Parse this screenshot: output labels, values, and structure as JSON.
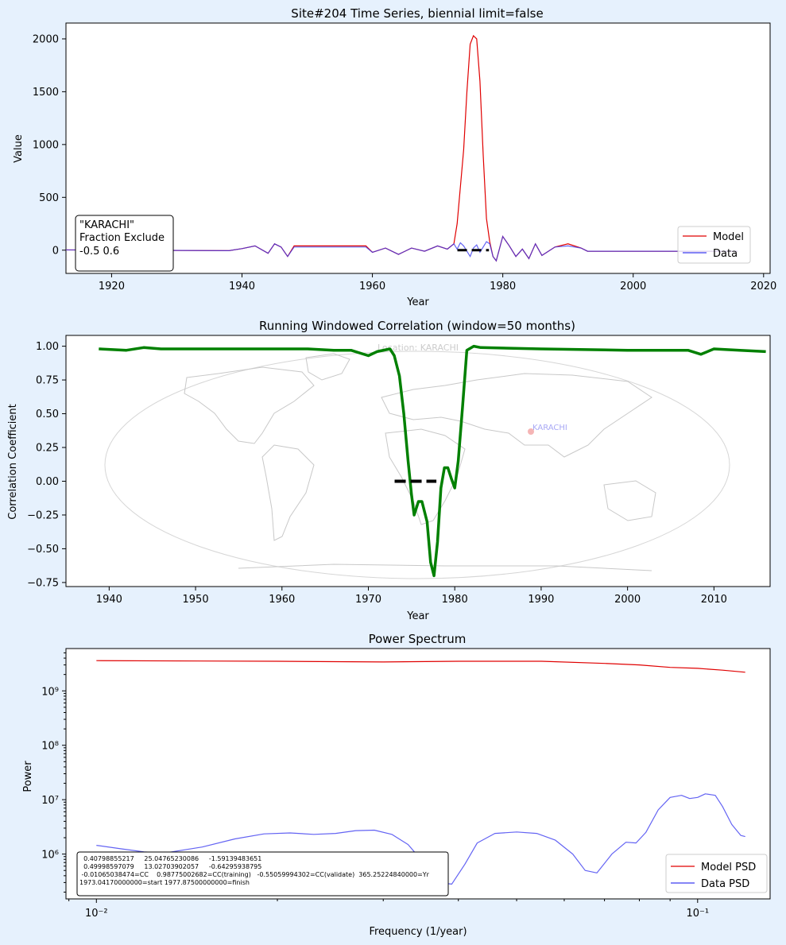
{
  "colors": {
    "background": "#e6f1fd",
    "model": "#e00000",
    "data": "#3c3cf0",
    "overlap": "#7a0fa0",
    "correlation": "#008000",
    "map": "#c8c8c8",
    "marker": "#000000"
  },
  "chart_data": [
    {
      "type": "line",
      "title": "Site#204 Time Series, biennial limit=false",
      "xlabel": "Year",
      "ylabel": "Value",
      "xlim": [
        1913,
        2021
      ],
      "ylim": [
        -220,
        2150
      ],
      "xticks": [
        "1920",
        "1940",
        "1960",
        "1980",
        "2000",
        "2020"
      ],
      "yticks": [
        "0",
        "500",
        "1000",
        "1500",
        "2000"
      ],
      "legend": {
        "placement": "lower-right",
        "entries": [
          "Model",
          "Data"
        ]
      },
      "annotation": [
        "\"KARACHI\"",
        "Fraction Exclude",
        "-0.5 0.6"
      ],
      "interval_marker": {
        "start": 1973.04,
        "finish": 1977.875,
        "y": 0
      },
      "series": [
        {
          "name": "Model",
          "x": [
            1905,
            1938,
            1940,
            1942,
            1944,
            1945,
            1946,
            1947,
            1948,
            1959,
            1960,
            1962,
            1964,
            1966,
            1968,
            1970,
            1971.5,
            1972.5,
            1973,
            1973.5,
            1974,
            1974.5,
            1975,
            1975.5,
            1976,
            1976.5,
            1977,
            1977.5,
            1978,
            1978.5,
            1979,
            1980,
            1981,
            1982,
            1983,
            1984,
            1985,
            1986,
            1988,
            1990,
            1992,
            1993,
            2016
          ],
          "y": [
            5,
            -5,
            15,
            40,
            -30,
            60,
            30,
            -60,
            40,
            40,
            -20,
            20,
            -40,
            20,
            -10,
            40,
            10,
            60,
            250,
            600,
            950,
            1500,
            1950,
            2030,
            2000,
            1600,
            900,
            300,
            80,
            -60,
            -100,
            130,
            40,
            -60,
            10,
            -80,
            60,
            -50,
            30,
            60,
            20,
            -10,
            -10
          ]
        },
        {
          "name": "Data",
          "x": [
            1905,
            1938,
            1940,
            1942,
            1944,
            1945,
            1946,
            1947,
            1948,
            1959,
            1960,
            1962,
            1964,
            1966,
            1968,
            1970,
            1971.5,
            1972.5,
            1973,
            1973.5,
            1974,
            1974.5,
            1975,
            1975.5,
            1976,
            1976.5,
            1977,
            1977.5,
            1978,
            1978.5,
            1979,
            1980,
            1981,
            1982,
            1983,
            1984,
            1985,
            1986,
            1988,
            1990,
            1992,
            1993,
            2016
          ],
          "y": [
            5,
            -5,
            15,
            40,
            -30,
            60,
            30,
            -60,
            30,
            30,
            -20,
            20,
            -40,
            20,
            -10,
            40,
            10,
            60,
            10,
            70,
            40,
            -10,
            -60,
            20,
            50,
            -20,
            30,
            80,
            60,
            -60,
            -100,
            130,
            40,
            -60,
            10,
            -80,
            60,
            -50,
            30,
            40,
            20,
            -10,
            -10
          ]
        }
      ]
    },
    {
      "type": "line",
      "title": "Running Windowed Correlation (window=50 months)",
      "xlabel": "Year",
      "ylabel": "Correlation Coefficient",
      "xlim": [
        1935,
        2016.5
      ],
      "ylim": [
        -0.78,
        1.08
      ],
      "xticks": [
        "1940",
        "1950",
        "1960",
        "1970",
        "1980",
        "1990",
        "2000",
        "2010"
      ],
      "yticks": [
        "1.00",
        "0.75",
        "0.50",
        "0.25",
        "0.00",
        "−0.25",
        "−0.50",
        "−0.75"
      ],
      "map_labels": {
        "location": "Location: KARACHI",
        "site": "KARACHI"
      },
      "interval_marker": {
        "start": 1973.04,
        "finish": 1977.875,
        "y": 0
      },
      "series": [
        {
          "name": "Correlation",
          "x": [
            1938.8,
            1942,
            1944,
            1946,
            1950,
            1960,
            1963,
            1966,
            1968,
            1970,
            1971,
            1972.5,
            1973,
            1973.6,
            1974.1,
            1974.6,
            1975,
            1975.3,
            1975.8,
            1976.2,
            1976.8,
            1977.2,
            1977.6,
            1978,
            1978.4,
            1978.8,
            1979.2,
            1979.6,
            1980,
            1980.4,
            1980.9,
            1981.4,
            1982.2,
            1983,
            1990,
            2000,
            2007,
            2008.5,
            2010,
            2013,
            2016
          ],
          "y": [
            0.98,
            0.97,
            0.99,
            0.98,
            0.98,
            0.98,
            0.98,
            0.97,
            0.97,
            0.93,
            0.96,
            0.98,
            0.93,
            0.78,
            0.5,
            0.15,
            -0.1,
            -0.25,
            -0.15,
            -0.15,
            -0.3,
            -0.6,
            -0.7,
            -0.45,
            -0.05,
            0.1,
            0.1,
            0.02,
            -0.05,
            0.15,
            0.55,
            0.97,
            1.0,
            0.99,
            0.98,
            0.97,
            0.97,
            0.94,
            0.98,
            0.97,
            0.96
          ]
        }
      ]
    },
    {
      "type": "line",
      "title": "Power Spectrum",
      "xlabel": "Frequency (1/year)",
      "ylabel": "Power",
      "xscale": "log",
      "yscale": "log",
      "xlim": [
        0.0089,
        0.132
      ],
      "ylim": [
        150000,
        6000000000
      ],
      "xticks": [
        "10⁻²",
        "10⁻¹"
      ],
      "yticks": [
        "10⁶",
        "10⁷",
        "10⁸",
        "10⁹"
      ],
      "legend": {
        "placement": "lower-right",
        "entries": [
          "Model PSD",
          "Data PSD"
        ]
      },
      "annotation": [
        "  0.40798855217     25.04765230086     -1.59139483651",
        "  0.49998597079     13.02703902057     -0.64295938795",
        " -0.01065038474=CC    0.98775002682=CC(training)   -0.55059994302=CC(validate)  365.25224840000=Yr",
        "1973.04170000000=start 1977.87500000000=finish"
      ],
      "series": [
        {
          "name": "Model PSD",
          "x": [
            0.01,
            0.02,
            0.03,
            0.04,
            0.055,
            0.07,
            0.08,
            0.09,
            0.1,
            0.11,
            0.12
          ],
          "y": [
            3600000000,
            3500000000,
            3400000000,
            3500000000,
            3500000000,
            3200000000,
            3000000000,
            2700000000,
            2600000000,
            2400000000,
            2200000000
          ]
        },
        {
          "name": "Data PSD",
          "x": [
            0.01,
            0.011,
            0.012,
            0.013,
            0.015,
            0.017,
            0.019,
            0.021,
            0.023,
            0.025,
            0.027,
            0.029,
            0.031,
            0.033,
            0.035,
            0.037,
            0.039,
            0.041,
            0.043,
            0.046,
            0.05,
            0.054,
            0.058,
            0.062,
            0.065,
            0.068,
            0.072,
            0.076,
            0.079,
            0.082,
            0.086,
            0.09,
            0.094,
            0.097,
            0.1,
            0.103,
            0.107,
            0.11,
            0.114,
            0.118,
            0.12
          ],
          "y": [
            1450000,
            1250000,
            1100000,
            1050000,
            1350000,
            1900000,
            2350000,
            2450000,
            2300000,
            2400000,
            2700000,
            2750000,
            2300000,
            1500000,
            700000,
            300000,
            280000,
            650000,
            1600000,
            2400000,
            2550000,
            2400000,
            1800000,
            1000000,
            500000,
            450000,
            1000000,
            1650000,
            1600000,
            2500000,
            6500000,
            11000000,
            12000000,
            10500000,
            11000000,
            12800000,
            12000000,
            7500000,
            3500000,
            2200000,
            2100000
          ]
        }
      ]
    }
  ]
}
